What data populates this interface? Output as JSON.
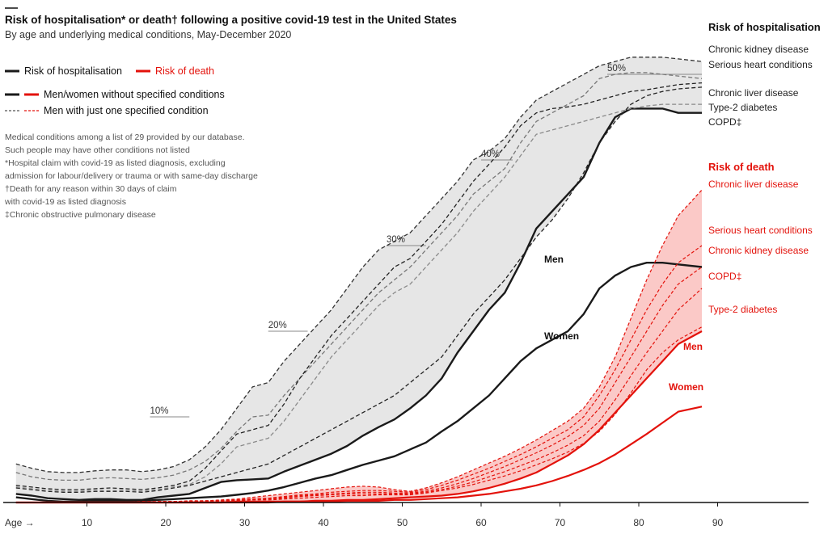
{
  "chart_data": {
    "type": "line",
    "title": "Risk of hospitalisation* or death† following a positive covid-19 test in the United States",
    "subtitle": "By age and underlying medical conditions, May-December 2020",
    "x_axis": {
      "label": "Age →",
      "ticks": [
        10,
        20,
        30,
        40,
        50,
        60,
        70,
        80,
        90
      ],
      "range": [
        0,
        100
      ]
    },
    "y_axis": {
      "unit": "%",
      "gridlines": [
        "10%",
        "20%",
        "30%",
        "40%",
        "50%"
      ],
      "range": [
        0,
        52
      ]
    },
    "legend": [
      {
        "text": "Risk of hospitalisation",
        "color": "#1a1a1a",
        "style": "solid"
      },
      {
        "text": "Risk of death",
        "color": "#e3120b",
        "style": "solid"
      },
      {
        "text": "Men/women without specified conditions",
        "color": "#1a1a1a",
        "style": "solid-pair"
      },
      {
        "text": "Men with just one specified condition",
        "color": "#555555",
        "style": "dashed-pair"
      }
    ],
    "notes": [
      "Medical conditions among a list of 29 provided by our database.",
      "Such people may have other conditions not listed",
      "*Hospital claim with covid-19 as listed diagnosis, excluding",
      "admission for labour/delivery or trauma or with same-day discharge",
      "†Death for any reason within 30 days of claim",
      "with covid-19 as listed diagnosis",
      "‡Chronic obstructive pulmonary disease"
    ],
    "headings": {
      "hosp": "Risk of hospitalisation",
      "death": "Risk of death"
    },
    "ages": [
      1,
      3,
      5,
      7,
      9,
      11,
      13,
      15,
      17,
      19,
      21,
      23,
      25,
      27,
      29,
      31,
      33,
      35,
      37,
      39,
      41,
      43,
      45,
      47,
      49,
      51,
      53,
      55,
      57,
      59,
      61,
      63,
      65,
      67,
      69,
      71,
      73,
      75,
      77,
      79,
      81,
      83,
      85,
      88
    ],
    "hospitalisation": {
      "series": [
        {
          "name": "Men",
          "values": [
            1.0,
            0.8,
            0.5,
            0.4,
            0.3,
            0.4,
            0.4,
            0.3,
            0.3,
            0.6,
            0.8,
            1.0,
            1.7,
            2.4,
            2.6,
            2.7,
            2.8,
            3.6,
            4.3,
            5.0,
            5.7,
            6.6,
            7.8,
            8.8,
            9.7,
            11.0,
            12.5,
            14.5,
            17.5,
            20.0,
            22.5,
            24.5,
            28.0,
            32.0,
            34.0,
            36.0,
            38.0,
            42.0,
            45.0,
            46.0,
            46.0,
            46.0,
            45.5,
            45.5
          ]
        },
        {
          "name": "Women",
          "values": [
            0.6,
            0.4,
            0.2,
            0.1,
            0.1,
            0.2,
            0.2,
            0.2,
            0.2,
            0.3,
            0.4,
            0.5,
            0.6,
            0.7,
            0.9,
            1.1,
            1.4,
            1.8,
            2.3,
            2.8,
            3.2,
            3.8,
            4.4,
            4.9,
            5.4,
            6.2,
            7.0,
            8.3,
            9.5,
            11.0,
            12.5,
            14.5,
            16.5,
            18.0,
            19.0,
            20.0,
            22.0,
            25.0,
            26.5,
            27.5,
            28.0,
            28.0,
            27.8,
            27.5
          ]
        },
        {
          "name": "Chronic kidney disease",
          "values": [
            4.5,
            4.0,
            3.6,
            3.5,
            3.5,
            3.7,
            3.8,
            3.8,
            3.6,
            3.8,
            4.2,
            5.0,
            6.5,
            8.5,
            11.0,
            13.5,
            14.0,
            16.5,
            18.5,
            20.5,
            22.5,
            25.0,
            27.5,
            29.5,
            30.5,
            31.5,
            33.5,
            35.5,
            37.5,
            40.0,
            41.0,
            42.5,
            45.0,
            47.0,
            48.0,
            49.0,
            50.0,
            51.0,
            51.5,
            52.0,
            52.0,
            52.0,
            51.8,
            51.5
          ]
        },
        {
          "name": "Serious heart conditions",
          "values": [
            3.5,
            3.0,
            2.7,
            2.6,
            2.6,
            2.8,
            2.9,
            2.8,
            2.7,
            2.9,
            3.2,
            3.8,
            4.8,
            6.3,
            8.3,
            10.0,
            10.2,
            12.5,
            14.5,
            16.5,
            18.5,
            20.5,
            22.5,
            24.5,
            26.0,
            27.5,
            29.5,
            31.5,
            33.5,
            36.0,
            37.5,
            39.0,
            42.0,
            44.5,
            45.5,
            46.5,
            47.5,
            49.5,
            50.0,
            50.2,
            50.2,
            50.0,
            49.8,
            49.5
          ]
        },
        {
          "name": "Chronic liver disease",
          "values": [
            2.0,
            1.8,
            1.6,
            1.5,
            1.5,
            1.6,
            1.7,
            1.6,
            1.5,
            1.7,
            2.0,
            2.5,
            4.0,
            6.0,
            8.0,
            8.5,
            9.0,
            11.5,
            14.5,
            17.0,
            19.5,
            21.5,
            23.5,
            25.5,
            27.5,
            28.5,
            30.5,
            32.5,
            35.0,
            37.5,
            39.5,
            41.5,
            44.0,
            45.5,
            46.0,
            46.2,
            46.5,
            47.0,
            47.5,
            48.0,
            48.2,
            48.5,
            48.8,
            49.0
          ]
        },
        {
          "name": "Type-2 diabetes",
          "values": [
            1.7,
            1.5,
            1.3,
            1.2,
            1.2,
            1.3,
            1.3,
            1.3,
            1.2,
            1.4,
            1.7,
            2.0,
            2.5,
            3.0,
            3.5,
            4.0,
            4.5,
            5.5,
            6.5,
            7.5,
            8.5,
            9.5,
            10.5,
            11.5,
            12.5,
            14.0,
            15.5,
            17.0,
            19.5,
            22.0,
            24.0,
            26.0,
            28.5,
            31.0,
            33.0,
            35.5,
            38.5,
            42.0,
            44.5,
            46.5,
            47.5,
            48.0,
            48.3,
            48.5
          ]
        },
        {
          "name": "COPD‡",
          "values": [
            1.8,
            1.6,
            1.4,
            1.3,
            1.3,
            1.4,
            1.4,
            1.4,
            1.3,
            1.5,
            1.8,
            2.1,
            3.0,
            4.5,
            6.5,
            7.0,
            7.5,
            9.5,
            12.0,
            14.5,
            17.0,
            19.0,
            21.0,
            23.0,
            24.5,
            25.5,
            27.5,
            29.5,
            31.5,
            34.0,
            36.0,
            38.0,
            40.5,
            43.0,
            43.5,
            44.0,
            44.5,
            45.0,
            45.5,
            46.0,
            46.3,
            46.5,
            46.5,
            46.5
          ]
        }
      ]
    },
    "death": {
      "series": [
        {
          "name": "Men",
          "values": [
            0.0,
            0.0,
            0.0,
            0.0,
            0.0,
            0.0,
            0.0,
            0.0,
            0.0,
            0.0,
            0.0,
            0.0,
            0.0,
            0.0,
            0.1,
            0.1,
            0.1,
            0.1,
            0.1,
            0.2,
            0.2,
            0.3,
            0.3,
            0.4,
            0.5,
            0.6,
            0.7,
            0.8,
            1.0,
            1.3,
            1.7,
            2.2,
            2.8,
            3.5,
            4.5,
            5.5,
            6.8,
            8.5,
            10.5,
            12.5,
            14.5,
            16.5,
            18.5,
            20.0
          ]
        },
        {
          "name": "Women",
          "values": [
            0.0,
            0.0,
            0.0,
            0.0,
            0.0,
            0.0,
            0.0,
            0.0,
            0.0,
            0.0,
            0.0,
            0.0,
            0.0,
            0.0,
            0.0,
            0.0,
            0.0,
            0.1,
            0.1,
            0.1,
            0.1,
            0.2,
            0.2,
            0.2,
            0.3,
            0.3,
            0.4,
            0.5,
            0.6,
            0.8,
            1.0,
            1.3,
            1.6,
            2.0,
            2.5,
            3.1,
            3.8,
            4.6,
            5.6,
            6.8,
            8.0,
            9.3,
            10.6,
            11.2
          ]
        },
        {
          "name": "Chronic liver disease",
          "values": [
            0.0,
            0.0,
            0.0,
            0.0,
            0.0,
            0.0,
            0.0,
            0.0,
            0.1,
            0.1,
            0.1,
            0.2,
            0.2,
            0.3,
            0.4,
            0.6,
            0.8,
            1.0,
            1.2,
            1.4,
            1.6,
            1.8,
            1.9,
            1.8,
            1.5,
            1.3,
            1.7,
            2.3,
            3.0,
            3.8,
            4.6,
            5.4,
            6.3,
            7.3,
            8.4,
            9.5,
            11.0,
            13.5,
            17.0,
            21.5,
            26.0,
            30.0,
            33.5,
            36.5
          ]
        },
        {
          "name": "Serious heart conditions",
          "values": [
            0.0,
            0.0,
            0.0,
            0.0,
            0.0,
            0.0,
            0.0,
            0.0,
            0.0,
            0.1,
            0.1,
            0.1,
            0.2,
            0.2,
            0.3,
            0.4,
            0.5,
            0.7,
            0.9,
            1.0,
            1.2,
            1.3,
            1.4,
            1.4,
            1.3,
            1.2,
            1.5,
            2.0,
            2.6,
            3.3,
            4.0,
            4.8,
            5.6,
            6.5,
            7.5,
            8.5,
            10.0,
            12.5,
            15.5,
            19.0,
            22.5,
            25.5,
            28.0,
            30.0
          ]
        },
        {
          "name": "Chronic kidney disease",
          "values": [
            0.0,
            0.0,
            0.0,
            0.0,
            0.0,
            0.0,
            0.0,
            0.0,
            0.0,
            0.1,
            0.1,
            0.1,
            0.1,
            0.2,
            0.3,
            0.4,
            0.5,
            0.6,
            0.8,
            0.9,
            1.0,
            1.1,
            1.2,
            1.2,
            1.1,
            1.1,
            1.3,
            1.7,
            2.2,
            2.8,
            3.5,
            4.2,
            5.0,
            5.8,
            6.7,
            7.7,
            9.0,
            11.0,
            14.0,
            17.0,
            20.0,
            23.0,
            25.5,
            27.5
          ]
        },
        {
          "name": "COPD‡",
          "values": [
            0.0,
            0.0,
            0.0,
            0.0,
            0.0,
            0.0,
            0.0,
            0.0,
            0.0,
            0.1,
            0.1,
            0.1,
            0.1,
            0.2,
            0.2,
            0.3,
            0.4,
            0.5,
            0.7,
            0.8,
            0.9,
            1.0,
            1.0,
            1.0,
            1.0,
            1.0,
            1.2,
            1.5,
            1.9,
            2.4,
            3.0,
            3.6,
            4.3,
            5.0,
            5.8,
            6.7,
            7.8,
            9.5,
            12.0,
            14.8,
            17.5,
            20.0,
            22.5,
            25.0
          ]
        },
        {
          "name": "Type-2 diabetes",
          "values": [
            0.0,
            0.0,
            0.0,
            0.0,
            0.0,
            0.0,
            0.0,
            0.0,
            0.0,
            0.0,
            0.1,
            0.1,
            0.1,
            0.1,
            0.2,
            0.3,
            0.3,
            0.4,
            0.5,
            0.6,
            0.7,
            0.8,
            0.8,
            0.9,
            0.9,
            0.9,
            1.1,
            1.4,
            1.7,
            2.1,
            2.6,
            3.1,
            3.7,
            4.4,
            5.1,
            5.9,
            6.9,
            8.3,
            10.3,
            12.8,
            15.5,
            17.5,
            19.0,
            20.5
          ]
        }
      ]
    },
    "colors": {
      "hosp": "#1a1a1a",
      "hosp_dashed": "#555555",
      "hosp_dashed_light": "#8a8a8a",
      "hosp_band": "#e6e6e6",
      "death": "#e3120b",
      "death_band": "#fbc9c7"
    }
  }
}
